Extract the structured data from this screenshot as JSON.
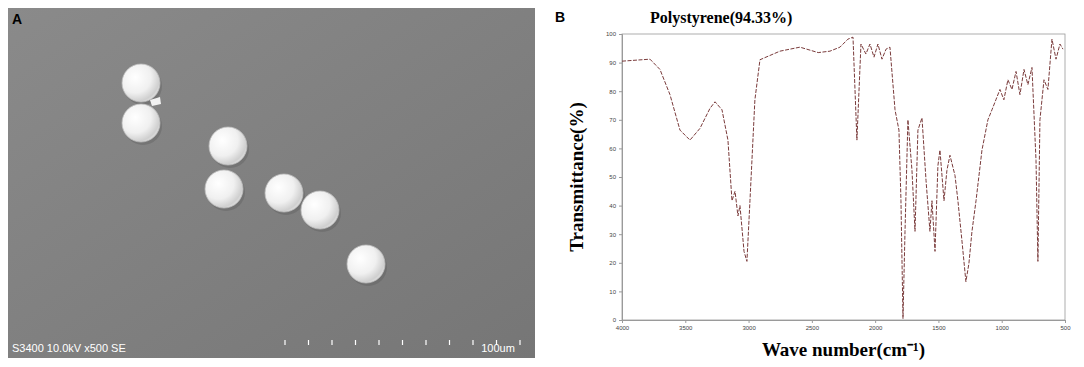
{
  "panel_a": {
    "label": "A",
    "caption": "S3400 10.0kV x500 SE",
    "scale_label": "100um"
  },
  "chart_data": {
    "type": "line",
    "panel_label": "B",
    "title": "Polystyrene(94.33%)",
    "x_label": "Wave number(cm⁻¹)",
    "y_label": "Transmittance(%)",
    "xlim": [
      4000,
      500
    ],
    "xticks": [
      4000,
      3500,
      3000,
      2500,
      2000,
      1500,
      1000,
      500
    ],
    "ylim": [
      0,
      100
    ],
    "yticks": [
      0,
      10,
      20,
      30,
      40,
      50,
      60,
      70,
      80,
      90,
      100
    ],
    "grid": false,
    "color": "#7a3b3b",
    "line_style": "dashed",
    "x": [
      4000,
      3779,
      3700,
      3621,
      3542,
      3463,
      3384,
      3305,
      3265,
      3210,
      3163,
      3131,
      3107,
      3084,
      3068,
      3036,
      3013,
      2989,
      2950,
      2910,
      2752,
      2594,
      2450,
      2357,
      2278,
      2215,
      2175,
      2144,
      2112,
      2073,
      2041,
      2009,
      1978,
      1946,
      1914,
      1883,
      1843,
      1812,
      1796,
      1780,
      1764,
      1741,
      1709,
      1685,
      1662,
      1630,
      1598,
      1567,
      1551,
      1527,
      1504,
      1488,
      1456,
      1433,
      1409,
      1369,
      1346,
      1314,
      1283,
      1259,
      1235,
      1203,
      1156,
      1109,
      1077,
      1046,
      1014,
      983,
      951,
      919,
      887,
      856,
      824,
      793,
      761,
      729,
      714,
      698,
      666,
      635,
      603,
      571,
      540,
      516
    ],
    "values": [
      90.5,
      91.2,
      87.6,
      78.8,
      66.4,
      62.9,
      67.0,
      74.0,
      76.3,
      73.5,
      62.9,
      41.7,
      45.0,
      36.4,
      40.0,
      24.0,
      20.5,
      41.7,
      77.0,
      91.0,
      94.0,
      95.4,
      93.5,
      94.0,
      95.4,
      98.2,
      98.9,
      62.9,
      96.5,
      93.0,
      96.5,
      91.9,
      96.5,
      91.2,
      94.7,
      95.4,
      73.5,
      66.4,
      41.7,
      0.5,
      31.0,
      70.0,
      52.3,
      31.0,
      66.4,
      70.7,
      48.8,
      31.0,
      41.7,
      24.0,
      54.0,
      59.4,
      41.7,
      52.3,
      57.6,
      50.5,
      41.7,
      27.6,
      13.4,
      19.8,
      31.0,
      41.7,
      59.4,
      70.0,
      73.5,
      77.0,
      80.6,
      77.0,
      84.0,
      80.6,
      86.9,
      78.8,
      87.6,
      82.3,
      88.3,
      55.8,
      20.5,
      70.0,
      84.0,
      80.6,
      98.2,
      91.2,
      96.5,
      94.7
    ]
  }
}
